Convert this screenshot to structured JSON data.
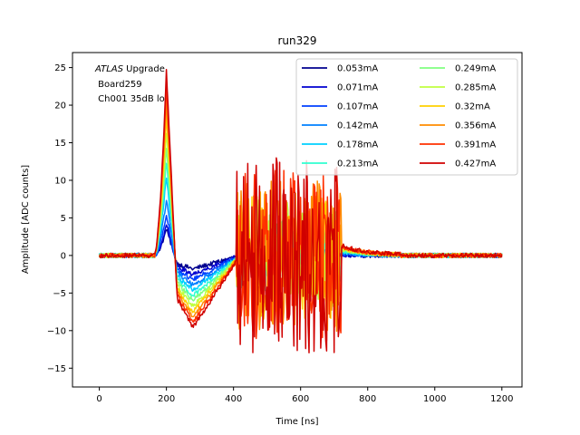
{
  "chart_data": {
    "type": "line",
    "title": "run329",
    "xlabel": "Time [ns]",
    "ylabel": "Amplitude [ADC counts]",
    "xlim": [
      -80,
      1260
    ],
    "ylim": [
      -17.5,
      27
    ],
    "xticks": [
      0,
      200,
      400,
      600,
      800,
      1000,
      1200
    ],
    "yticks": [
      -15,
      -10,
      -5,
      0,
      5,
      10,
      15,
      20,
      25
    ],
    "grid": false,
    "legend_position": "top-right",
    "legend_columns": 2,
    "annotation": {
      "italic": "ATLAS",
      "rest": " Upgrade",
      "line2": " Board259",
      "line3": " Ch001 35dB lo"
    },
    "series": [
      {
        "name": "0.053mA",
        "color": "#00008f",
        "peak": 3.5
      },
      {
        "name": "0.071mA",
        "color": "#0000d0",
        "peak": 4.2
      },
      {
        "name": "0.107mA",
        "color": "#0040ff",
        "peak": 5.5
      },
      {
        "name": "0.142mA",
        "color": "#0080ff",
        "peak": 7.5
      },
      {
        "name": "0.178mA",
        "color": "#00d0ff",
        "peak": 10.5
      },
      {
        "name": "0.213mA",
        "color": "#30ffd0",
        "peak": 12.5
      },
      {
        "name": "0.249mA",
        "color": "#80ff80",
        "peak": 14.5
      },
      {
        "name": "0.285mA",
        "color": "#c0ff40",
        "peak": 16.5
      },
      {
        "name": "0.32mA",
        "color": "#ffd000",
        "peak": 18.5
      },
      {
        "name": "0.356mA",
        "color": "#ff8c00",
        "peak": 20.5
      },
      {
        "name": "0.391mA",
        "color": "#ff3000",
        "peak": 22.5
      },
      {
        "name": "0.427mA",
        "color": "#d00000",
        "peak": 24.5
      }
    ]
  }
}
